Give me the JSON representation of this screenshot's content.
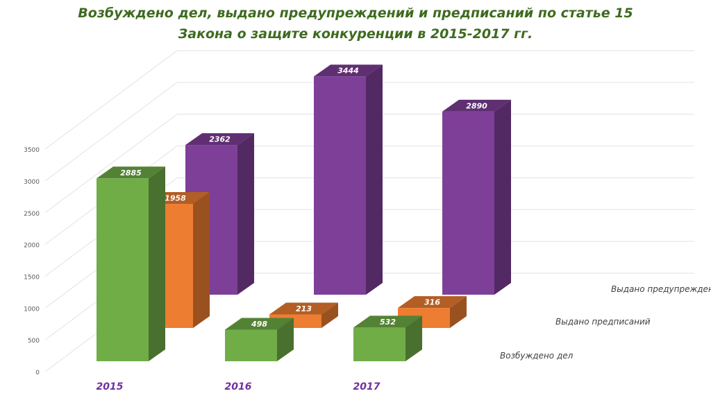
{
  "chart_data": {
    "type": "bar",
    "title_line1": "Возбуждено дел, выдано предупреждений и предписаний по статье 15",
    "title_line2": "Закона о защите конкуренции в 2015-2017 гг.",
    "categories": [
      "2015",
      "2016",
      "2017"
    ],
    "series": [
      {
        "name": "Возбуждено дел",
        "values": [
          2885,
          498,
          532
        ],
        "color": "#70ad47"
      },
      {
        "name": "Выдано предписаний",
        "values": [
          1958,
          213,
          316
        ],
        "color": "#ed7d31"
      },
      {
        "name": "Выдано предупреждений",
        "values": [
          2362,
          3444,
          2890
        ],
        "color": "#7e3f98"
      }
    ],
    "yticks": [
      0,
      500,
      1000,
      1500,
      2000,
      2500,
      3000,
      3500
    ],
    "ylim": [
      0,
      3500
    ],
    "grid": true,
    "style": "3d-column"
  }
}
